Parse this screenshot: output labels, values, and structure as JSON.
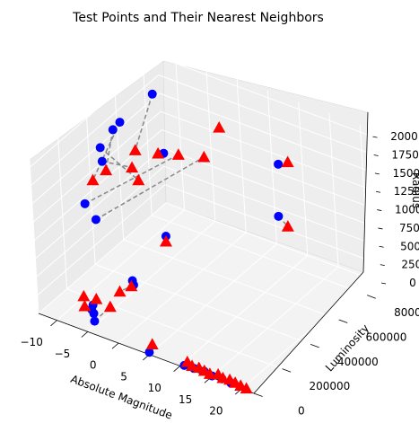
{
  "chart_data": {
    "type": "scatter",
    "dimensions": 3,
    "title": "Test Points and Their Nearest Neighbors",
    "xlabel": "Absolute Magnitude",
    "ylabel": "Luminosity",
    "zlabel": "Radius",
    "xticks": [
      -10,
      -5,
      0,
      5,
      10,
      15,
      20
    ],
    "yticks": [
      0,
      200000,
      400000,
      600000,
      800000
    ],
    "zticks": [
      0,
      250,
      500,
      750,
      1000,
      1250,
      1500,
      1750,
      2000
    ],
    "xlim": [
      -13,
      22
    ],
    "ylim": [
      0,
      900000
    ],
    "zlim": [
      0,
      2100
    ],
    "grid": true,
    "series": [
      {
        "role": "neighbors",
        "marker": "circle",
        "color": "#0000ff",
        "points": [
          [
            -10.5,
            520000,
            1820
          ],
          [
            -9.5,
            430000,
            1900
          ],
          [
            -9.2,
            750000,
            1050
          ],
          [
            -11.5,
            790000,
            1720
          ],
          [
            -10.6,
            390000,
            1500
          ],
          [
            -7.2,
            120000,
            1480
          ],
          [
            -9.8,
            350000,
            1780
          ],
          [
            -7.5,
            200000,
            1120
          ],
          [
            -6.5,
            95000,
            100
          ],
          [
            -6.6,
            110000,
            130
          ],
          [
            -5.8,
            80000,
            90
          ],
          [
            -5.0,
            50000,
            60
          ],
          [
            -4.5,
            300000,
            210
          ],
          [
            -4.1,
            290000,
            180
          ],
          [
            -3.2,
            490000,
            540
          ],
          [
            4.9,
            5000,
            20
          ],
          [
            6.8,
            850000,
            520
          ],
          [
            8.0,
            820000,
            1320
          ],
          [
            10.5,
            8000,
            10
          ],
          [
            12.0,
            12000,
            8
          ],
          [
            13.5,
            18000,
            6
          ],
          [
            15.0,
            9000,
            4
          ],
          [
            16.5,
            14000,
            3
          ],
          [
            18.0,
            10000,
            2
          ]
        ]
      },
      {
        "role": "test-points",
        "marker": "triangle",
        "color": "#ff0000",
        "points": [
          [
            -10.6,
            320000,
            1360
          ],
          [
            -9.8,
            380000,
            1420
          ],
          [
            -9.2,
            560000,
            1410
          ],
          [
            -8.9,
            700000,
            1140
          ],
          [
            -6.2,
            410000,
            1520
          ],
          [
            -5.0,
            400000,
            1400
          ],
          [
            -3.8,
            630000,
            1400
          ],
          [
            -1.8,
            720000,
            1280
          ],
          [
            1.5,
            700000,
            1820
          ],
          [
            9.1,
            840000,
            1350
          ],
          [
            -7.8,
            100000,
            230
          ],
          [
            -7.0,
            70000,
            170
          ],
          [
            -5.5,
            90000,
            280
          ],
          [
            -3.5,
            170000,
            310
          ],
          [
            -4.0,
            120000,
            170
          ],
          [
            -3.0,
            480000,
            490
          ],
          [
            -4.0,
            270000,
            200
          ],
          [
            4.6,
            40000,
            60
          ],
          [
            9.0,
            820000,
            500
          ],
          [
            10.5,
            30000,
            20
          ],
          [
            11.5,
            20000,
            15
          ],
          [
            12.5,
            25000,
            12
          ],
          [
            13.5,
            20000,
            10
          ],
          [
            14.5,
            15000,
            8
          ],
          [
            15.5,
            30000,
            6
          ],
          [
            16.5,
            20000,
            5
          ],
          [
            17.5,
            25000,
            4
          ],
          [
            18.5,
            20000,
            3
          ],
          [
            19.5,
            15000,
            2
          ],
          [
            20.5,
            12000,
            1
          ]
        ]
      }
    ],
    "links": [
      [
        0,
        0
      ],
      [
        1,
        1
      ],
      [
        2,
        3
      ],
      [
        3,
        2
      ],
      [
        4,
        4
      ],
      [
        5,
        6
      ],
      [
        6,
        5
      ],
      [
        7,
        7
      ],
      [
        8,
        11
      ],
      [
        9,
        10
      ],
      [
        10,
        12
      ],
      [
        11,
        14
      ],
      [
        12,
        16
      ],
      [
        13,
        13
      ],
      [
        14,
        15
      ],
      [
        16,
        18
      ],
      [
        17,
        9
      ],
      [
        18,
        19
      ],
      [
        19,
        21
      ],
      [
        20,
        23
      ],
      [
        21,
        25
      ],
      [
        22,
        27
      ],
      [
        23,
        29
      ]
    ]
  }
}
